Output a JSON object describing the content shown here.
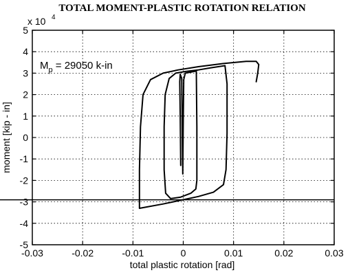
{
  "chart_data": {
    "type": "line",
    "title": "TOTAL MOMENT-PLASTIC ROTATION RELATION",
    "xlabel": "total plastic rotation [rad]",
    "ylabel": "moment [kip - in]",
    "y_multiplier_label": "x 10",
    "y_multiplier_exponent": "4",
    "xlim": [
      -0.03,
      0.03
    ],
    "ylim": [
      -5,
      5
    ],
    "x_ticks": [
      -0.03,
      -0.02,
      -0.01,
      0,
      0.01,
      0.02,
      0.03
    ],
    "x_tick_labels": [
      "-0.03",
      "-0.02",
      "-0.01",
      "0",
      "0.01",
      "0.02",
      "0.03"
    ],
    "y_ticks": [
      -5,
      -4,
      -3,
      -2,
      -1,
      0,
      1,
      2,
      3,
      4,
      5
    ],
    "y_tick_labels": [
      "-5",
      "-4",
      "-3",
      "-2",
      "-1",
      "0",
      "1",
      "2",
      "3",
      "4",
      "5"
    ],
    "grid": true,
    "annotation": {
      "base": "M",
      "subscript": "p",
      "rest": " = 29050 k-in",
      "at": [
        -0.0285,
        3.2
      ]
    },
    "reference_line": {
      "y": -2.905
    },
    "series": [
      {
        "points": [
          [
            -0.0005,
            -1.3
          ],
          [
            -0.0006,
            1.0
          ],
          [
            -0.0007,
            2.6
          ],
          [
            -0.0006,
            2.95
          ],
          [
            -0.0003,
            2.75
          ],
          [
            -0.0002,
            0.5
          ],
          [
            -0.0001,
            -1.7
          ],
          [
            0.0,
            0.8
          ],
          [
            0.0001,
            2.7
          ],
          [
            0.0004,
            3.0
          ],
          [
            0.0016,
            3.05
          ],
          [
            0.0026,
            3.1
          ],
          [
            0.0027,
            0.5
          ],
          [
            0.0027,
            -2.0
          ],
          [
            0.0025,
            -2.4
          ],
          [
            0.0015,
            -2.6
          ],
          [
            -0.0005,
            -2.78
          ],
          [
            -0.0025,
            -2.85
          ],
          [
            -0.0035,
            -2.6
          ],
          [
            -0.0038,
            -1.5
          ],
          [
            -0.0038,
            0.5
          ],
          [
            -0.0036,
            2.0
          ],
          [
            -0.0028,
            2.75
          ],
          [
            -0.0015,
            3.0
          ],
          [
            0.0005,
            3.08
          ],
          [
            0.003,
            3.15
          ],
          [
            0.0055,
            3.25
          ],
          [
            0.0083,
            3.35
          ],
          [
            0.0087,
            2.5
          ],
          [
            0.0087,
            0.2
          ],
          [
            0.0085,
            -1.5
          ],
          [
            0.008,
            -2.2
          ],
          [
            0.006,
            -2.55
          ],
          [
            0.003,
            -2.75
          ],
          [
            0.0,
            -2.9
          ],
          [
            -0.004,
            -3.1
          ],
          [
            -0.0075,
            -3.25
          ],
          [
            -0.0087,
            -3.3
          ],
          [
            -0.0087,
            -1.5
          ],
          [
            -0.0085,
            0.5
          ],
          [
            -0.008,
            2.0
          ],
          [
            -0.0065,
            2.7
          ],
          [
            -0.004,
            3.0
          ],
          [
            -0.001,
            3.15
          ],
          [
            0.003,
            3.3
          ],
          [
            0.008,
            3.45
          ],
          [
            0.0125,
            3.55
          ],
          [
            0.0145,
            3.55
          ],
          [
            0.015,
            3.4
          ],
          [
            0.0148,
            3.0
          ],
          [
            0.0145,
            2.6
          ]
        ]
      }
    ]
  }
}
